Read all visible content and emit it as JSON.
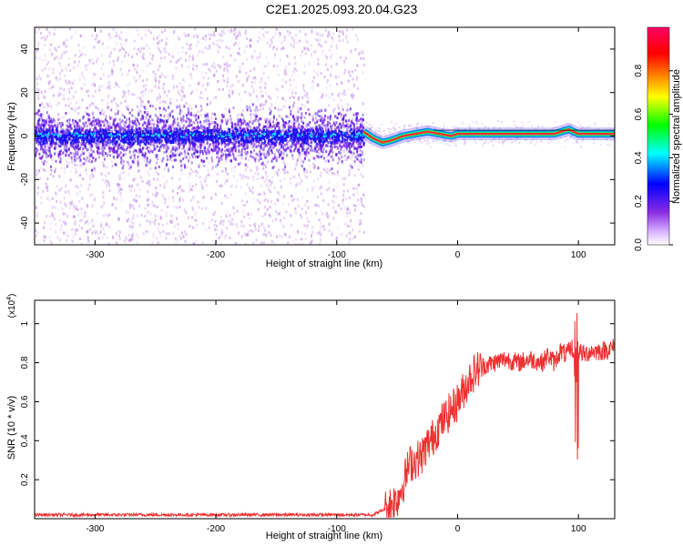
{
  "title": "C2E1.2025.093.20.04.G23",
  "chart_data": [
    {
      "type": "heatmap",
      "xlabel": "Height of straight line (km)",
      "ylabel": "Frequency (Hz)",
      "xlim": [
        -350,
        130
      ],
      "ylim": [
        -50,
        50
      ],
      "x_ticks": [
        -300,
        -200,
        -100,
        0,
        100
      ],
      "x_tick_labels": [
        "-300",
        "-200",
        "-100",
        "0",
        "100"
      ],
      "y_ticks": [
        -40,
        -20,
        0,
        20,
        40
      ],
      "y_tick_labels": [
        "-40",
        "-20",
        "0",
        "20",
        "40"
      ],
      "colorbar": {
        "label": "Normalized spectral amplitude",
        "range": [
          0,
          1
        ],
        "ticks": [
          0.0,
          0.2,
          0.4,
          0.6,
          0.8
        ],
        "tick_labels": [
          "0.0",
          "0.2",
          "0.4",
          "0.6",
          "0.8"
        ],
        "colors": [
          "#ffffff",
          "#8a2be2",
          "#0000ff",
          "#00ffff",
          "#00ff00",
          "#ffff00",
          "#ff8000",
          "#ff0000",
          "#ff0066"
        ]
      },
      "noise_region_x": [
        -350,
        -78
      ],
      "carrier_track": {
        "x": [
          -78,
          -70,
          -62,
          -55,
          -45,
          -35,
          -25,
          -15,
          -5,
          0,
          20,
          40,
          60,
          80,
          92,
          100,
          130
        ],
        "frequency": [
          2,
          -1,
          -3,
          -2,
          0,
          1,
          2,
          1,
          0,
          1,
          1,
          1,
          1,
          1,
          3,
          1,
          1
        ]
      },
      "grid": false
    },
    {
      "type": "line",
      "xlabel": "Height of straight line (km)",
      "ylabel": "SNR (10 * v/v)",
      "y_scale_label": "(x10",
      "y_scale_exp": "4",
      "y_scale_close": ")",
      "xlim": [
        -350,
        130
      ],
      "ylim": [
        0,
        1.12
      ],
      "x_ticks": [
        -300,
        -200,
        -100,
        0,
        100
      ],
      "x_tick_labels": [
        "-300",
        "-200",
        "-100",
        "0",
        "100"
      ],
      "y_ticks": [
        0.2,
        0.4,
        0.6,
        0.8,
        1.0
      ],
      "y_tick_labels": [
        "0.2",
        "0.4",
        "0.6",
        "0.8",
        "1"
      ],
      "series": [
        {
          "color": "#ee3030",
          "x": [
            -350,
            -300,
            -250,
            -200,
            -150,
            -100,
            -70,
            -60,
            -55,
            -50,
            -45,
            -40,
            -35,
            -30,
            -25,
            -20,
            -15,
            -10,
            -5,
            0,
            5,
            10,
            15,
            20,
            30,
            40,
            50,
            60,
            70,
            75,
            80,
            85,
            90,
            95,
            98,
            100,
            105,
            110,
            120,
            130
          ],
          "y": [
            0.02,
            0.02,
            0.02,
            0.02,
            0.02,
            0.02,
            0.02,
            0.05,
            0.08,
            0.1,
            0.18,
            0.28,
            0.3,
            0.32,
            0.38,
            0.42,
            0.48,
            0.52,
            0.56,
            0.6,
            0.66,
            0.72,
            0.76,
            0.78,
            0.8,
            0.82,
            0.8,
            0.82,
            0.8,
            0.84,
            0.8,
            0.86,
            0.84,
            0.88,
            0.7,
            0.86,
            0.84,
            0.86,
            0.86,
            0.88
          ]
        }
      ],
      "grid": false
    }
  ]
}
